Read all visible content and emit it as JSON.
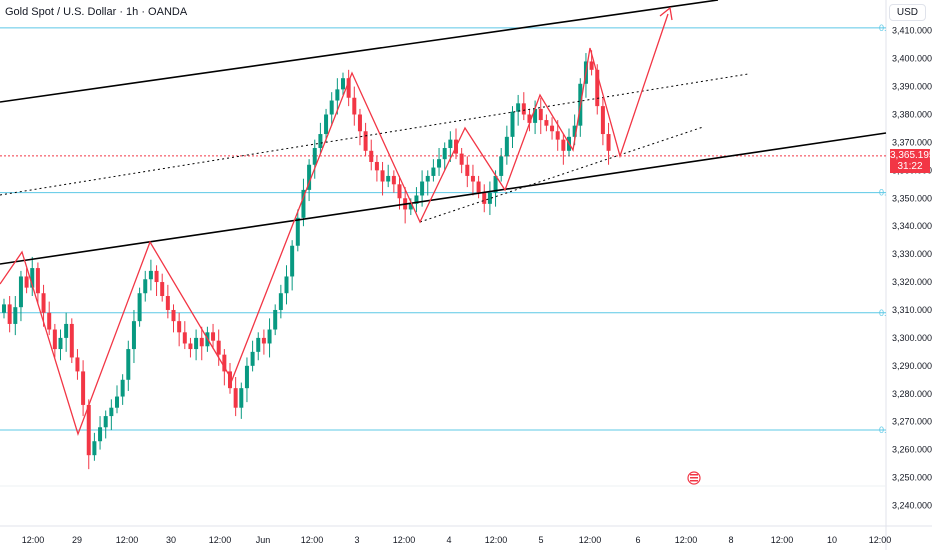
{
  "header": {
    "title": "Gold Spot / U.S. Dollar · 1h · OANDA"
  },
  "axis": {
    "currency": "USD"
  },
  "last_price": {
    "value": "3,365.195",
    "countdown": "31:22"
  },
  "fib_level_label": "0.",
  "colors": {
    "up": "#089981",
    "down": "#f23645",
    "fib": "#5cc8e6",
    "axis_text": "#131722"
  },
  "chart_data": {
    "type": "candlestick",
    "title": "Gold Spot / U.S. Dollar · 1h · OANDA",
    "ylim": [
      3233,
      3421
    ],
    "y_ticks": [
      3240,
      3250,
      3260,
      3270,
      3280,
      3290,
      3300,
      3310,
      3320,
      3330,
      3340,
      3350,
      3360,
      3370,
      3380,
      3390,
      3400,
      3410
    ],
    "y_tick_labels": [
      "3,240.000",
      "3,250.000",
      "3,260.000",
      "3,270.000",
      "3,280.000",
      "3,290.000",
      "3,300.000",
      "3,310.000",
      "3,320.000",
      "3,330.000",
      "3,340.000",
      "3,350.000",
      "3,360.000",
      "3,370.000",
      "3,380.000",
      "3,390.000",
      "3,400.000",
      "3,410.000"
    ],
    "x_labels": [
      "12:00",
      "29",
      "12:00",
      "30",
      "12:00",
      "Jun",
      "12:00",
      "3",
      "12:00",
      "4",
      "12:00",
      "5",
      "12:00",
      "6",
      "12:00",
      "8",
      "12:00",
      "10",
      "12:00"
    ],
    "fib_levels": [
      3411,
      3352,
      3309,
      3267
    ],
    "dashed_level": 3365.195,
    "close_series": [
      3312,
      3305,
      3311,
      3322,
      3318,
      3325,
      3316,
      3309,
      3303,
      3296,
      3300,
      3305,
      3293,
      3288,
      3276,
      3258,
      3263,
      3268,
      3272,
      3275,
      3279,
      3285,
      3296,
      3306,
      3316,
      3321,
      3324,
      3320,
      3315,
      3310,
      3306,
      3302,
      3298,
      3296,
      3300,
      3297,
      3302,
      3299,
      3294,
      3288,
      3282,
      3275,
      3282,
      3290,
      3295,
      3300,
      3298,
      3303,
      3310,
      3316,
      3322,
      3333,
      3343,
      3353,
      3362,
      3368,
      3373,
      3380,
      3385,
      3389,
      3393,
      3386,
      3380,
      3374,
      3367,
      3363,
      3360,
      3356,
      3358,
      3355,
      3350,
      3346,
      3348,
      3351,
      3356,
      3358,
      3361,
      3364,
      3368,
      3371,
      3366,
      3362,
      3358,
      3356,
      3352,
      3348,
      3352,
      3358,
      3365,
      3372,
      3381,
      3384,
      3380,
      3377,
      3382,
      3378,
      3376,
      3374,
      3371,
      3367,
      3372,
      3376,
      3391,
      3399,
      3396,
      3383,
      3373,
      3367
    ]
  }
}
